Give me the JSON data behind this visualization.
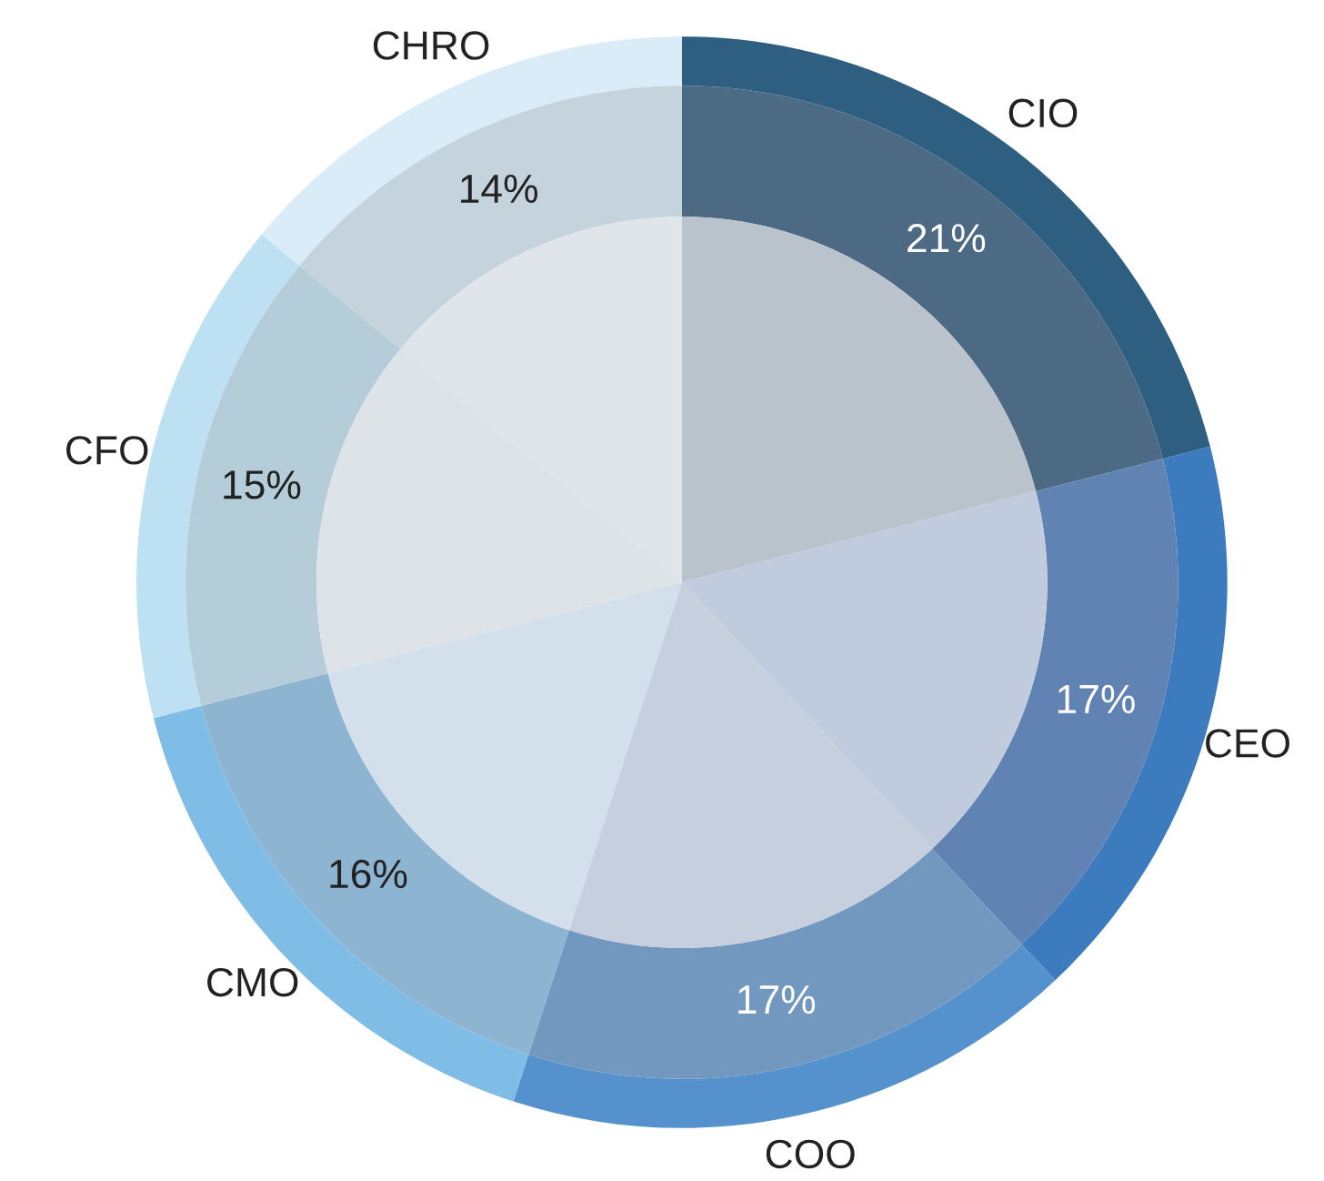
{
  "chart_data": {
    "type": "pie",
    "categories": [
      "CIO",
      "CEO",
      "COO",
      "CMO",
      "CFO",
      "CHRO"
    ],
    "series": [
      {
        "values": [
          21,
          17,
          17,
          16,
          15,
          14
        ],
        "colors": [
          "#2e5f80",
          "#3d7bbf",
          "#5591cc",
          "#80bde6",
          "#bde0f2",
          "#d9ecf7"
        ]
      },
      {
        "values": [
          21,
          17,
          17,
          16,
          15,
          14
        ],
        "colors": [
          "#4d6a85",
          "#6083b3",
          "#7298bf",
          "#8db5d1",
          "#b5cdd9",
          "#c5d3dc"
        ],
        "value_labels": [
          "21%",
          "17%",
          "17%",
          "16%",
          "15%",
          "14%"
        ]
      },
      {
        "values": [
          21,
          17,
          17,
          16,
          15,
          14
        ],
        "colors": [
          "#bac2cc",
          "#c0cbdd",
          "#c5cfdd",
          "#d3dfea",
          "#dde3e7",
          "#dfe5e8"
        ]
      }
    ]
  }
}
